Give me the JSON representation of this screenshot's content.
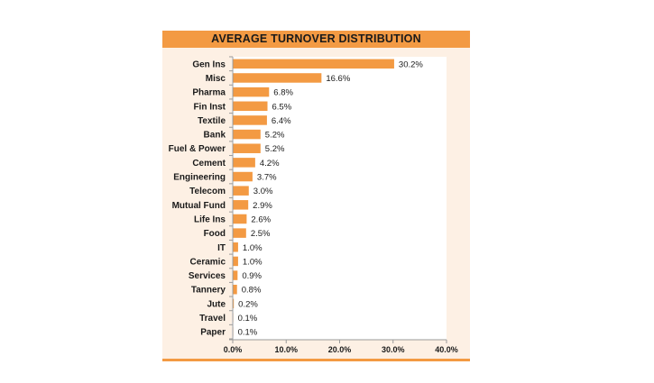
{
  "chart_data": {
    "type": "bar",
    "orientation": "horizontal",
    "title": "AVERAGE TURNOVER DISTRIBUTION",
    "categories": [
      "Gen Ins",
      "Misc",
      "Pharma",
      "Fin Inst",
      "Textile",
      "Bank",
      "Fuel & Power",
      "Cement",
      "Engineering",
      "Telecom",
      "Mutual Fund",
      "Life Ins",
      "Food",
      "IT",
      "Ceramic",
      "Services",
      "Tannery",
      "Jute",
      "Travel",
      "Paper"
    ],
    "values": [
      30.2,
      16.6,
      6.8,
      6.5,
      6.4,
      5.2,
      5.2,
      4.2,
      3.7,
      3.0,
      2.9,
      2.6,
      2.5,
      1.0,
      1.0,
      0.9,
      0.8,
      0.2,
      0.1,
      0.1
    ],
    "value_labels": [
      "30.2%",
      "16.6%",
      "6.8%",
      "6.5%",
      "6.4%",
      "5.2%",
      "5.2%",
      "4.2%",
      "3.7%",
      "3.0%",
      "2.9%",
      "2.6%",
      "2.5%",
      "1.0%",
      "1.0%",
      "0.9%",
      "0.8%",
      "0.2%",
      "0.1%",
      "0.1%"
    ],
    "xticks": [
      0,
      10,
      20,
      30,
      40
    ],
    "xtick_labels": [
      "0.0%",
      "10.0%",
      "20.0%",
      "30.0%",
      "40.0%"
    ],
    "xlim": [
      0,
      40
    ],
    "xlabel": "",
    "ylabel": "",
    "grid": false,
    "legend": "none",
    "colors": {
      "bar": "#f39a43",
      "title_band": "#f39a43",
      "panel_background": "#fdf0e4",
      "plot_background": "#ffffff",
      "axis": "#9a9a9a"
    }
  }
}
